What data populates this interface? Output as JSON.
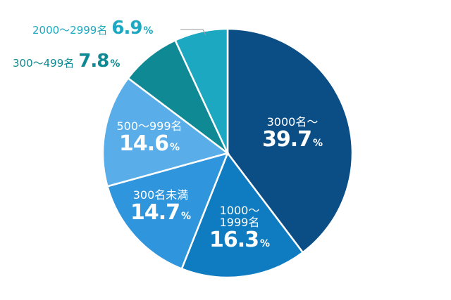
{
  "chart_data": {
    "type": "pie",
    "categories": [
      "3000名～",
      "1000～\n1999名",
      "300名未満",
      "500～999名",
      "300～499名",
      "2000～2999名"
    ],
    "values": [
      39.7,
      16.3,
      14.7,
      14.6,
      7.8,
      6.9
    ],
    "unit": "%",
    "colors": [
      "#0b4e86",
      "#0f7cc2",
      "#2f95dc",
      "#59aeea",
      "#0f8a94",
      "#1ca8c1"
    ]
  }
}
